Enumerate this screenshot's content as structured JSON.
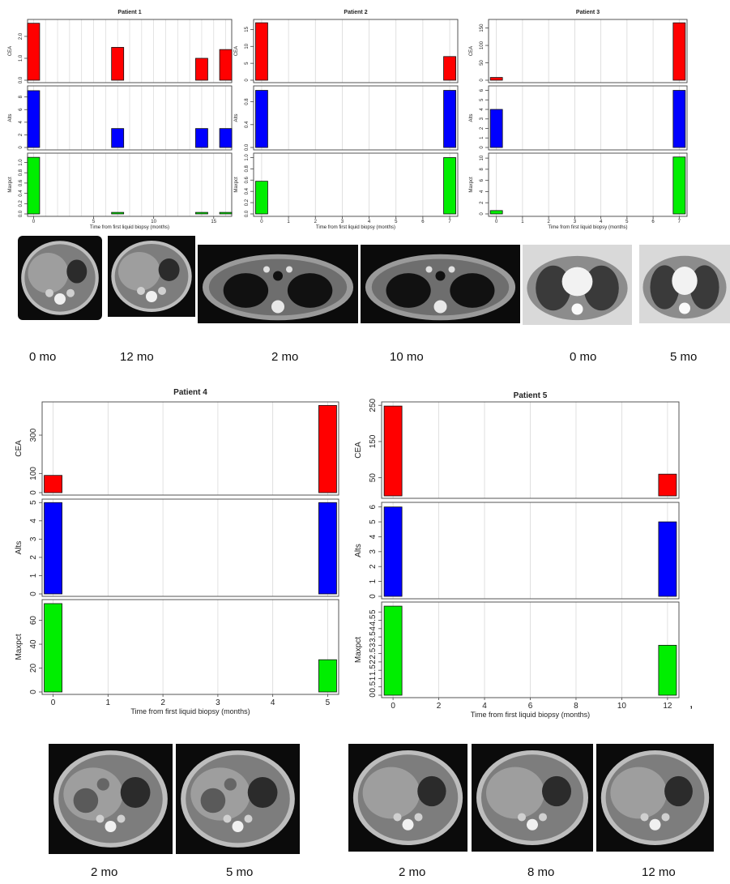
{
  "chart_data": [
    {
      "type": "bar",
      "title": "Patient 1",
      "xlabel": "Time from first liquid biopsy (months)",
      "xlim": [
        -0.5,
        16.5
      ],
      "xticks": [
        0,
        5,
        10,
        15
      ],
      "grid": true,
      "series": [
        {
          "name": "CEA",
          "color": "#ff0000",
          "ylim": [
            0,
            2.7
          ],
          "yticks": [
            "0.0",
            "1.0",
            "2.0"
          ],
          "x": [
            0,
            7,
            14,
            16
          ],
          "values": [
            2.6,
            1.5,
            1.0,
            1.4
          ]
        },
        {
          "name": "Alts",
          "color": "#0000ff",
          "ylim": [
            0,
            9.5
          ],
          "yticks": [
            "0",
            "2",
            "4",
            "6",
            "8"
          ],
          "x": [
            0,
            7,
            14,
            16
          ],
          "values": [
            9,
            3,
            3,
            3
          ]
        },
        {
          "name": "Maxpct",
          "color": "#00ee00",
          "ylim": [
            0,
            1.15
          ],
          "yticks": [
            "0.0",
            "0.2",
            "0.4",
            "0.6",
            "0.8",
            "1.0"
          ],
          "x": [
            0,
            7,
            14,
            16
          ],
          "values": [
            1.1,
            0.03,
            0.03,
            0.03
          ]
        }
      ]
    },
    {
      "type": "bar",
      "title": "Patient 2",
      "xlabel": "Time from first liquid biopsy (months)",
      "xlim": [
        -0.3,
        7.3
      ],
      "xticks": [
        0,
        1,
        2,
        3,
        4,
        5,
        6,
        7
      ],
      "grid": true,
      "series": [
        {
          "name": "CEA",
          "color": "#ff0000",
          "ylim": [
            0,
            17.5
          ],
          "yticks": [
            "0",
            "5",
            "10",
            "15"
          ],
          "x": [
            0,
            7
          ],
          "values": [
            17,
            7
          ]
        },
        {
          "name": "Alts",
          "color": "#0000ff",
          "ylim": [
            0,
            1.05
          ],
          "yticks": [
            "0.0",
            "0.4",
            "0.8"
          ],
          "x": [
            0,
            7
          ],
          "values": [
            1.0,
            1.0
          ]
        },
        {
          "name": "Maxpct",
          "color": "#00ee00",
          "ylim": [
            0,
            1.05
          ],
          "yticks": [
            "0.0",
            "0.2",
            "0.4",
            "0.6",
            "0.8",
            "1.0"
          ],
          "x": [
            0,
            7
          ],
          "values": [
            0.58,
            1.0
          ]
        }
      ]
    },
    {
      "type": "bar",
      "title": "Patient 3",
      "xlabel": "Time from first liquid biopsy (months)",
      "xlim": [
        -0.3,
        7.3
      ],
      "xticks": [
        0,
        1,
        2,
        3,
        4,
        5,
        6,
        7
      ],
      "grid": true,
      "series": [
        {
          "name": "CEA",
          "color": "#ff0000",
          "ylim": [
            0,
            170
          ],
          "yticks": [
            "0",
            "50",
            "100",
            "150"
          ],
          "x": [
            0,
            7
          ],
          "values": [
            8,
            165
          ]
        },
        {
          "name": "Alts",
          "color": "#0000ff",
          "ylim": [
            0,
            6.3
          ],
          "yticks": [
            "0",
            "1",
            "2",
            "3",
            "4",
            "5",
            "6"
          ],
          "x": [
            0,
            7
          ],
          "values": [
            4,
            6
          ]
        },
        {
          "name": "Maxpct",
          "color": "#00ee00",
          "ylim": [
            0,
            10.6
          ],
          "yticks": [
            "0",
            "2",
            "4",
            "6",
            "8",
            "10"
          ],
          "x": [
            0,
            7
          ],
          "values": [
            0.6,
            10.2
          ]
        }
      ]
    },
    {
      "type": "bar",
      "title": "Patient 4",
      "xlabel": "Time from first liquid biopsy (months)",
      "xlim": [
        -0.2,
        5.2
      ],
      "xticks": [
        0,
        1,
        2,
        3,
        4,
        5
      ],
      "grid": true,
      "series": [
        {
          "name": "CEA",
          "color": "#ff0000",
          "ylim": [
            0,
            465
          ],
          "yticks": [
            "0",
            "100",
            "300"
          ],
          "x": [
            0,
            5
          ],
          "values": [
            90,
            455
          ]
        },
        {
          "name": "Alts",
          "color": "#0000ff",
          "ylim": [
            0,
            5.1
          ],
          "yticks": [
            "0",
            "1",
            "2",
            "3",
            "4",
            "5"
          ],
          "x": [
            0,
            5
          ],
          "values": [
            5,
            5
          ]
        },
        {
          "name": "Maxpct",
          "color": "#00ee00",
          "ylim": [
            0,
            76
          ],
          "yticks": [
            "0",
            "20",
            "40",
            "60"
          ],
          "x": [
            0,
            5
          ],
          "values": [
            74,
            27
          ]
        }
      ]
    },
    {
      "type": "bar",
      "title": "Patient 5",
      "xlabel": "Time from first liquid biopsy (months)",
      "xlim": [
        -0.5,
        12.5
      ],
      "xticks": [
        0,
        2,
        4,
        6,
        8,
        10,
        12
      ],
      "xticklabels": [
        "0",
        "2",
        "4",
        "6",
        "8",
        "10",
        "12"
      ],
      "grid": true,
      "series": [
        {
          "name": "CEA",
          "color": "#ff0000",
          "ylim": [
            0,
            255
          ],
          "yticks": [
            "50",
            "150",
            "250"
          ],
          "x": [
            0,
            12
          ],
          "values": [
            248,
            60
          ]
        },
        {
          "name": "Alts",
          "color": "#0000ff",
          "ylim": [
            0,
            6.2
          ],
          "yticks": [
            "0",
            "1",
            "2",
            "3",
            "4",
            "5",
            "6"
          ],
          "x": [
            0,
            12
          ],
          "values": [
            6,
            5
          ]
        },
        {
          "name": "Maxpct",
          "color": "#00ee00",
          "ylim": [
            0,
            5.5
          ],
          "yticks": [
            "0",
            "0.5",
            "1",
            "1.5",
            "2",
            "2.5",
            "3",
            "3.5",
            "4",
            "4.5",
            "5"
          ],
          "x": [
            0,
            12
          ],
          "values": [
            5.35,
            3.0
          ]
        }
      ]
    }
  ],
  "scans_top": [
    {
      "caption": "0 mo",
      "kind": "liver"
    },
    {
      "caption": "12 mo",
      "kind": "liver"
    },
    {
      "caption": "2 mo",
      "kind": "thorax"
    },
    {
      "caption": "10 mo",
      "kind": "thorax"
    },
    {
      "caption": "0 mo",
      "kind": "lung"
    },
    {
      "caption": "5 mo",
      "kind": "lung"
    }
  ],
  "scans_bottom": [
    {
      "caption": "2 mo",
      "kind": "liver-mets"
    },
    {
      "caption": "5 mo",
      "kind": "liver-mets"
    },
    {
      "caption": "2 mo",
      "kind": "liver"
    },
    {
      "caption": "8 mo",
      "kind": "liver"
    },
    {
      "caption": "12 mo",
      "kind": "liver"
    }
  ],
  "trailing_mark": ","
}
